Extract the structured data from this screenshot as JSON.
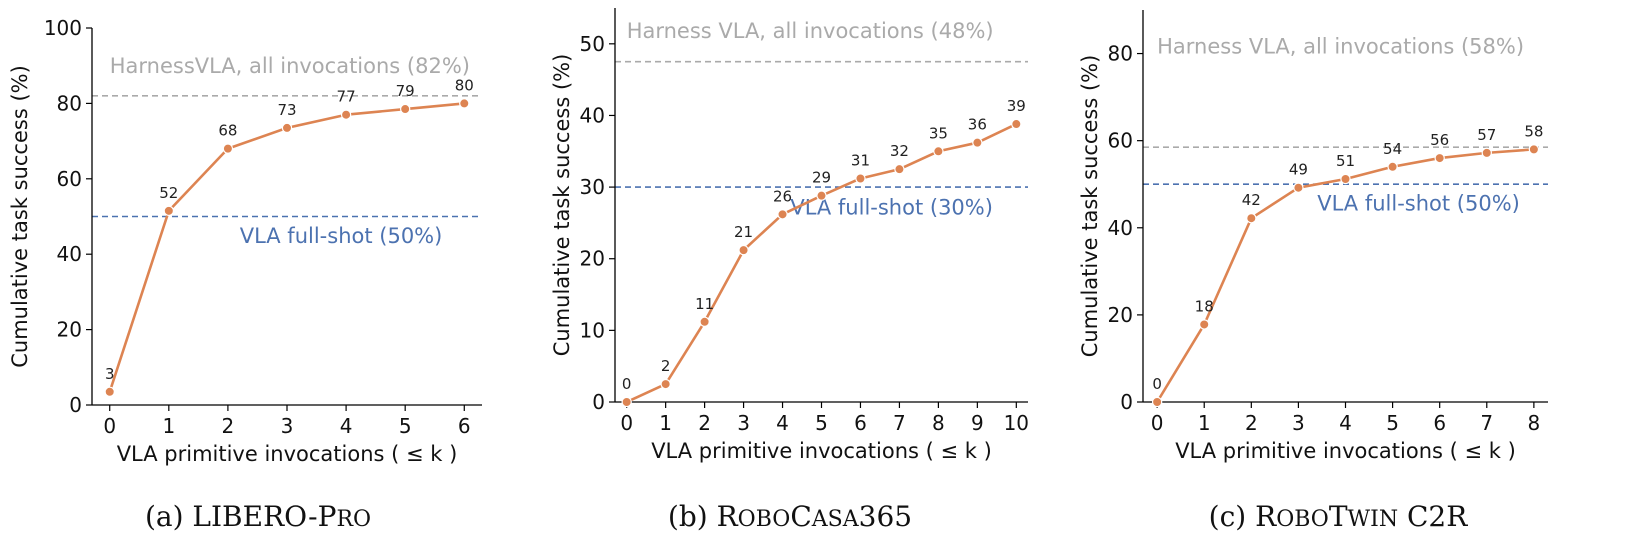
{
  "chart_data": [
    {
      "type": "line",
      "caption_parts": [
        {
          "text": "(a) LIBERO-P",
          "sc": false
        },
        {
          "text": "RO",
          "sc": true
        }
      ],
      "xlabel": "VLA primitive invocations ( ≤ k )",
      "ylabel": "Cumulative task success (%)",
      "x": [
        0,
        1,
        2,
        3,
        4,
        5,
        6
      ],
      "xlim": [
        -0.3,
        6.3
      ],
      "ylim": [
        0,
        100
      ],
      "yticks": [
        0,
        20,
        40,
        60,
        80,
        100
      ],
      "series": [
        {
          "values": [
            3.5,
            51.5,
            68,
            73.5,
            77,
            78.5,
            80
          ],
          "labels": [
            "3",
            "52",
            "68",
            "73",
            "77",
            "79",
            "80"
          ],
          "color": "#DD8452"
        }
      ],
      "reference_lines": [
        {
          "value": 82,
          "label": "HarnessVLA, all invocations (82%)",
          "color": "#aaaaaa",
          "label_x": 0,
          "label_y": 88,
          "anchor": "start"
        },
        {
          "value": 50,
          "label": "VLA full-shot (50%)",
          "color": "#4C72B0",
          "label_x": 2.2,
          "label_y": 43,
          "anchor": "start"
        }
      ]
    },
    {
      "type": "line",
      "caption_parts": [
        {
          "text": "(b) R",
          "sc": false
        },
        {
          "text": "OBO",
          "sc": true
        },
        {
          "text": "C",
          "sc": false
        },
        {
          "text": "ASA",
          "sc": true
        },
        {
          "text": "365",
          "sc": false
        }
      ],
      "xlabel": "VLA primitive invocations ( ≤ k )",
      "ylabel": "Cumulative task success (%)",
      "x": [
        0,
        1,
        2,
        3,
        4,
        5,
        6,
        7,
        8,
        9,
        10
      ],
      "xlim": [
        -0.3,
        10.3
      ],
      "ylim": [
        0,
        55
      ],
      "yticks": [
        0,
        10,
        20,
        30,
        40,
        50
      ],
      "series": [
        {
          "values": [
            0,
            2.5,
            11.2,
            21.2,
            26.2,
            28.8,
            31.2,
            32.5,
            35,
            36.2,
            38.8
          ],
          "labels": [
            "0",
            "2",
            "11",
            "21",
            "26",
            "29",
            "31",
            "32",
            "35",
            "36",
            "39"
          ],
          "color": "#DD8452"
        }
      ],
      "reference_lines": [
        {
          "value": 47.5,
          "label": "Harness VLA, all invocations (48%)",
          "color": "#aaaaaa",
          "label_x": 0,
          "label_y": 50.8,
          "anchor": "start"
        },
        {
          "value": 30,
          "label": "VLA full-shot (30%)",
          "color": "#4C72B0",
          "label_x": 4.2,
          "label_y": 26.2,
          "anchor": "start"
        }
      ]
    },
    {
      "type": "line",
      "caption_parts": [
        {
          "text": "(c) R",
          "sc": false
        },
        {
          "text": "OBO",
          "sc": true
        },
        {
          "text": "T",
          "sc": false
        },
        {
          "text": "WIN",
          "sc": true
        },
        {
          "text": " C2R",
          "sc": false
        }
      ],
      "xlabel": "VLA primitive invocations ( ≤ k )",
      "ylabel": "Cumulative task success (%)",
      "x": [
        0,
        1,
        2,
        3,
        4,
        5,
        6,
        7,
        8
      ],
      "xlim": [
        -0.3,
        8.3
      ],
      "ylim": [
        0,
        90
      ],
      "yticks": [
        0,
        20,
        40,
        60,
        80
      ],
      "series": [
        {
          "values": [
            0,
            17.8,
            42.2,
            49.2,
            51.2,
            54,
            56,
            57.2,
            58
          ],
          "labels": [
            "0",
            "18",
            "42",
            "49",
            "51",
            "54",
            "56",
            "57",
            "58"
          ],
          "color": "#DD8452"
        }
      ],
      "reference_lines": [
        {
          "value": 58.5,
          "label": "Harness VLA, all invocations (58%)",
          "color": "#aaaaaa",
          "label_x": 0,
          "label_y": 80,
          "anchor": "start"
        },
        {
          "value": 50,
          "label": "VLA full-shot (50%)",
          "color": "#4C72B0",
          "label_x": 3.4,
          "label_y": 44,
          "anchor": "start"
        }
      ]
    }
  ]
}
